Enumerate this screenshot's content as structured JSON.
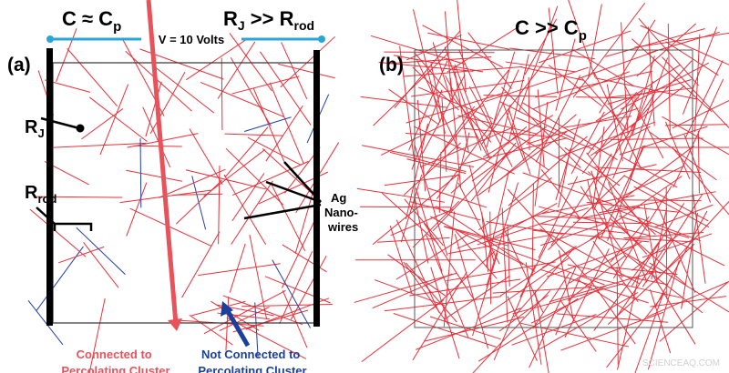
{
  "panel_a": {
    "label": "(a)",
    "title_left": {
      "main": "C ≈ C",
      "sub": "p"
    },
    "title_right": {
      "main": "R",
      "sub1": "J",
      "mid": " >> R",
      "sub2": "rod"
    },
    "voltage": "V = 10 Volts",
    "rj_label": {
      "main": "R",
      "sub": "J"
    },
    "rrod_label": {
      "main": "R",
      "sub": "rod"
    },
    "nanowires_label": [
      "Ag",
      "Nano-",
      "wires"
    ],
    "connected_label": [
      "Connected to",
      "Percolating Cluster"
    ],
    "not_connected_label": [
      "Not Connected to",
      "Percolating Cluster"
    ]
  },
  "panel_b": {
    "label": "(b)",
    "title": {
      "main": "C >> C",
      "sub": "p"
    }
  },
  "watermark": "SCIENCEAQ.COM",
  "colors": {
    "connected": "#e8303a",
    "not_connected": "#1f3fa8",
    "electrode_wire": "#2aa6d6",
    "connected_text": "#e8525a",
    "not_connected_text": "#1a3f9c"
  }
}
